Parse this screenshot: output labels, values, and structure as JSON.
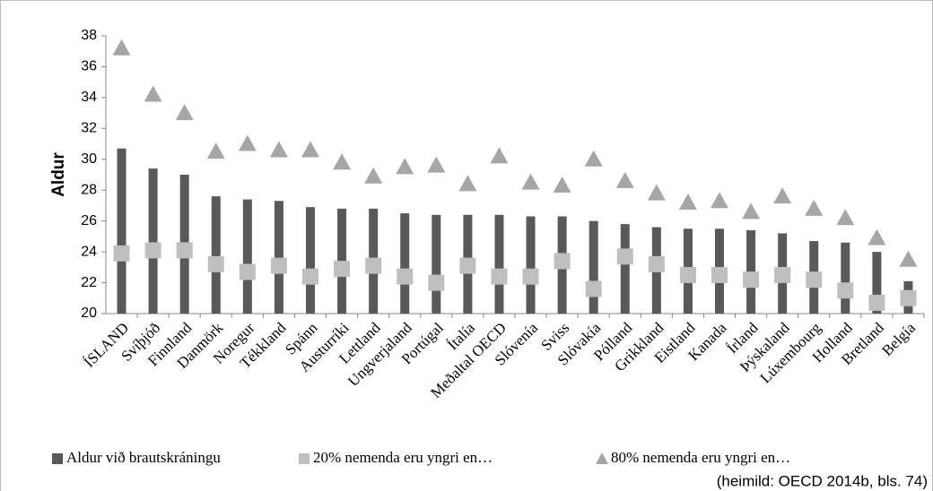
{
  "chart_data": {
    "type": "bar_marker",
    "y_label": "Aldur",
    "note": "(heimild: OECD 2014b, bls. 74)",
    "categories": [
      "ÍSLAND",
      "Svíþjóð",
      "Finnland",
      "Danmörk",
      "Noregur",
      "Tékkland",
      "Spánn",
      "Austurríki",
      "Lettland",
      "Ungverjaland",
      "Portúgal",
      "Ítalía",
      "Meðaltal OECD",
      "Slóvenía",
      "Sviss",
      "Slóvakía",
      "Pólland",
      "Grikkland",
      "Eistland",
      "Kanada",
      "Írland",
      "Þýskaland",
      "Lúxembourg",
      "Holland",
      "Bretland",
      "Belgía"
    ],
    "series": [
      {
        "name": "Aldur við brautskráningu",
        "color": "#595959",
        "marker": "bar",
        "values": [
          30.7,
          29.4,
          29.0,
          27.6,
          27.4,
          27.3,
          26.9,
          26.8,
          26.8,
          26.5,
          26.4,
          26.4,
          26.4,
          26.3,
          26.3,
          26.0,
          25.8,
          25.6,
          25.5,
          25.5,
          25.4,
          25.2,
          24.7,
          24.6,
          24.0,
          22.1
        ]
      },
      {
        "name": "20% nemenda eru yngri en…",
        "color": "#bfbfbf",
        "marker": "square",
        "values": [
          23.9,
          24.1,
          24.1,
          23.2,
          22.7,
          23.1,
          22.4,
          22.9,
          23.1,
          22.4,
          22.0,
          23.1,
          22.4,
          22.4,
          23.4,
          21.6,
          23.7,
          23.2,
          22.5,
          22.5,
          22.2,
          22.5,
          22.2,
          21.5,
          20.7,
          21.0
        ]
      },
      {
        "name": "80% nemenda eru yngri en…",
        "color": "#a6a6a6",
        "marker": "triangle",
        "values": [
          37.2,
          34.2,
          33.0,
          30.5,
          31.0,
          30.6,
          30.6,
          29.8,
          28.9,
          29.5,
          29.6,
          28.4,
          30.2,
          28.5,
          28.3,
          30.0,
          28.6,
          27.8,
          27.2,
          27.3,
          26.6,
          27.6,
          26.8,
          26.2,
          24.9,
          23.5
        ]
      }
    ],
    "ylim": [
      20,
      38
    ],
    "yticks": [
      20,
      22,
      24,
      26,
      28,
      30,
      32,
      34,
      36,
      38
    ],
    "grid": false
  }
}
